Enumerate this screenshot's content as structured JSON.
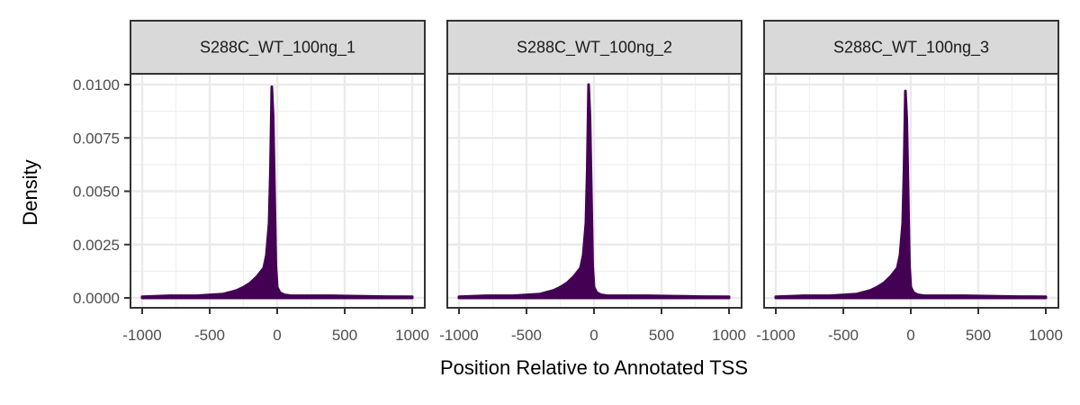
{
  "chart_data": {
    "type": "area",
    "xlabel": "Position Relative to Annotated TSS",
    "ylabel": "Density",
    "xlim": [
      -1000,
      1000
    ],
    "ylim": [
      0,
      0.0115
    ],
    "x_ticks": [
      -1000,
      -500,
      0,
      500,
      1000
    ],
    "x_tick_labels": [
      "-1000",
      "-500",
      "0",
      "500",
      "1000"
    ],
    "y_ticks": [
      0,
      0.0025,
      0.005,
      0.0075,
      0.01
    ],
    "y_tick_labels": [
      "0.0000",
      "0.0025",
      "0.0050",
      "0.0075",
      "0.0100"
    ],
    "grid": true,
    "fill_color": "#440154",
    "panels": [
      {
        "title": "S288C_WT_100ng_1",
        "x": [
          -1000,
          -800,
          -600,
          -400,
          -300,
          -250,
          -200,
          -150,
          -100,
          -80,
          -60,
          -50,
          -40,
          -30,
          -20,
          -10,
          0,
          20,
          50,
          100,
          200,
          400,
          600,
          800,
          1000
        ],
        "y": [
          5e-05,
          0.0001,
          0.0001,
          0.00018,
          0.00035,
          0.0005,
          0.0007,
          0.001,
          0.0014,
          0.002,
          0.0035,
          0.006,
          0.0099,
          0.0085,
          0.005,
          0.0015,
          0.0005,
          0.00025,
          0.00015,
          0.0001,
          0.0001,
          0.0001,
          8e-05,
          6e-05,
          5e-05
        ]
      },
      {
        "title": "S288C_WT_100ng_2",
        "x": [
          -1000,
          -800,
          -600,
          -400,
          -300,
          -250,
          -200,
          -150,
          -100,
          -80,
          -60,
          -50,
          -40,
          -30,
          -20,
          -10,
          0,
          20,
          50,
          100,
          200,
          400,
          600,
          800,
          1000
        ],
        "y": [
          5e-05,
          0.0001,
          0.0001,
          0.00018,
          0.00035,
          0.0005,
          0.0007,
          0.001,
          0.0014,
          0.002,
          0.0035,
          0.006,
          0.01,
          0.0085,
          0.005,
          0.0015,
          0.0005,
          0.00025,
          0.00015,
          0.0001,
          0.0001,
          0.0001,
          8e-05,
          6e-05,
          5e-05
        ]
      },
      {
        "title": "S288C_WT_100ng_3",
        "x": [
          -1000,
          -800,
          -600,
          -400,
          -300,
          -250,
          -200,
          -150,
          -100,
          -80,
          -60,
          -50,
          -40,
          -30,
          -20,
          -10,
          0,
          20,
          50,
          100,
          200,
          400,
          600,
          800,
          1000
        ],
        "y": [
          5e-05,
          0.0001,
          0.0001,
          0.00018,
          0.00035,
          0.0005,
          0.0007,
          0.001,
          0.0014,
          0.002,
          0.0035,
          0.006,
          0.0097,
          0.0084,
          0.005,
          0.0015,
          0.0005,
          0.00025,
          0.00015,
          0.0001,
          0.0001,
          0.0001,
          8e-05,
          6e-05,
          5e-05
        ]
      }
    ]
  }
}
